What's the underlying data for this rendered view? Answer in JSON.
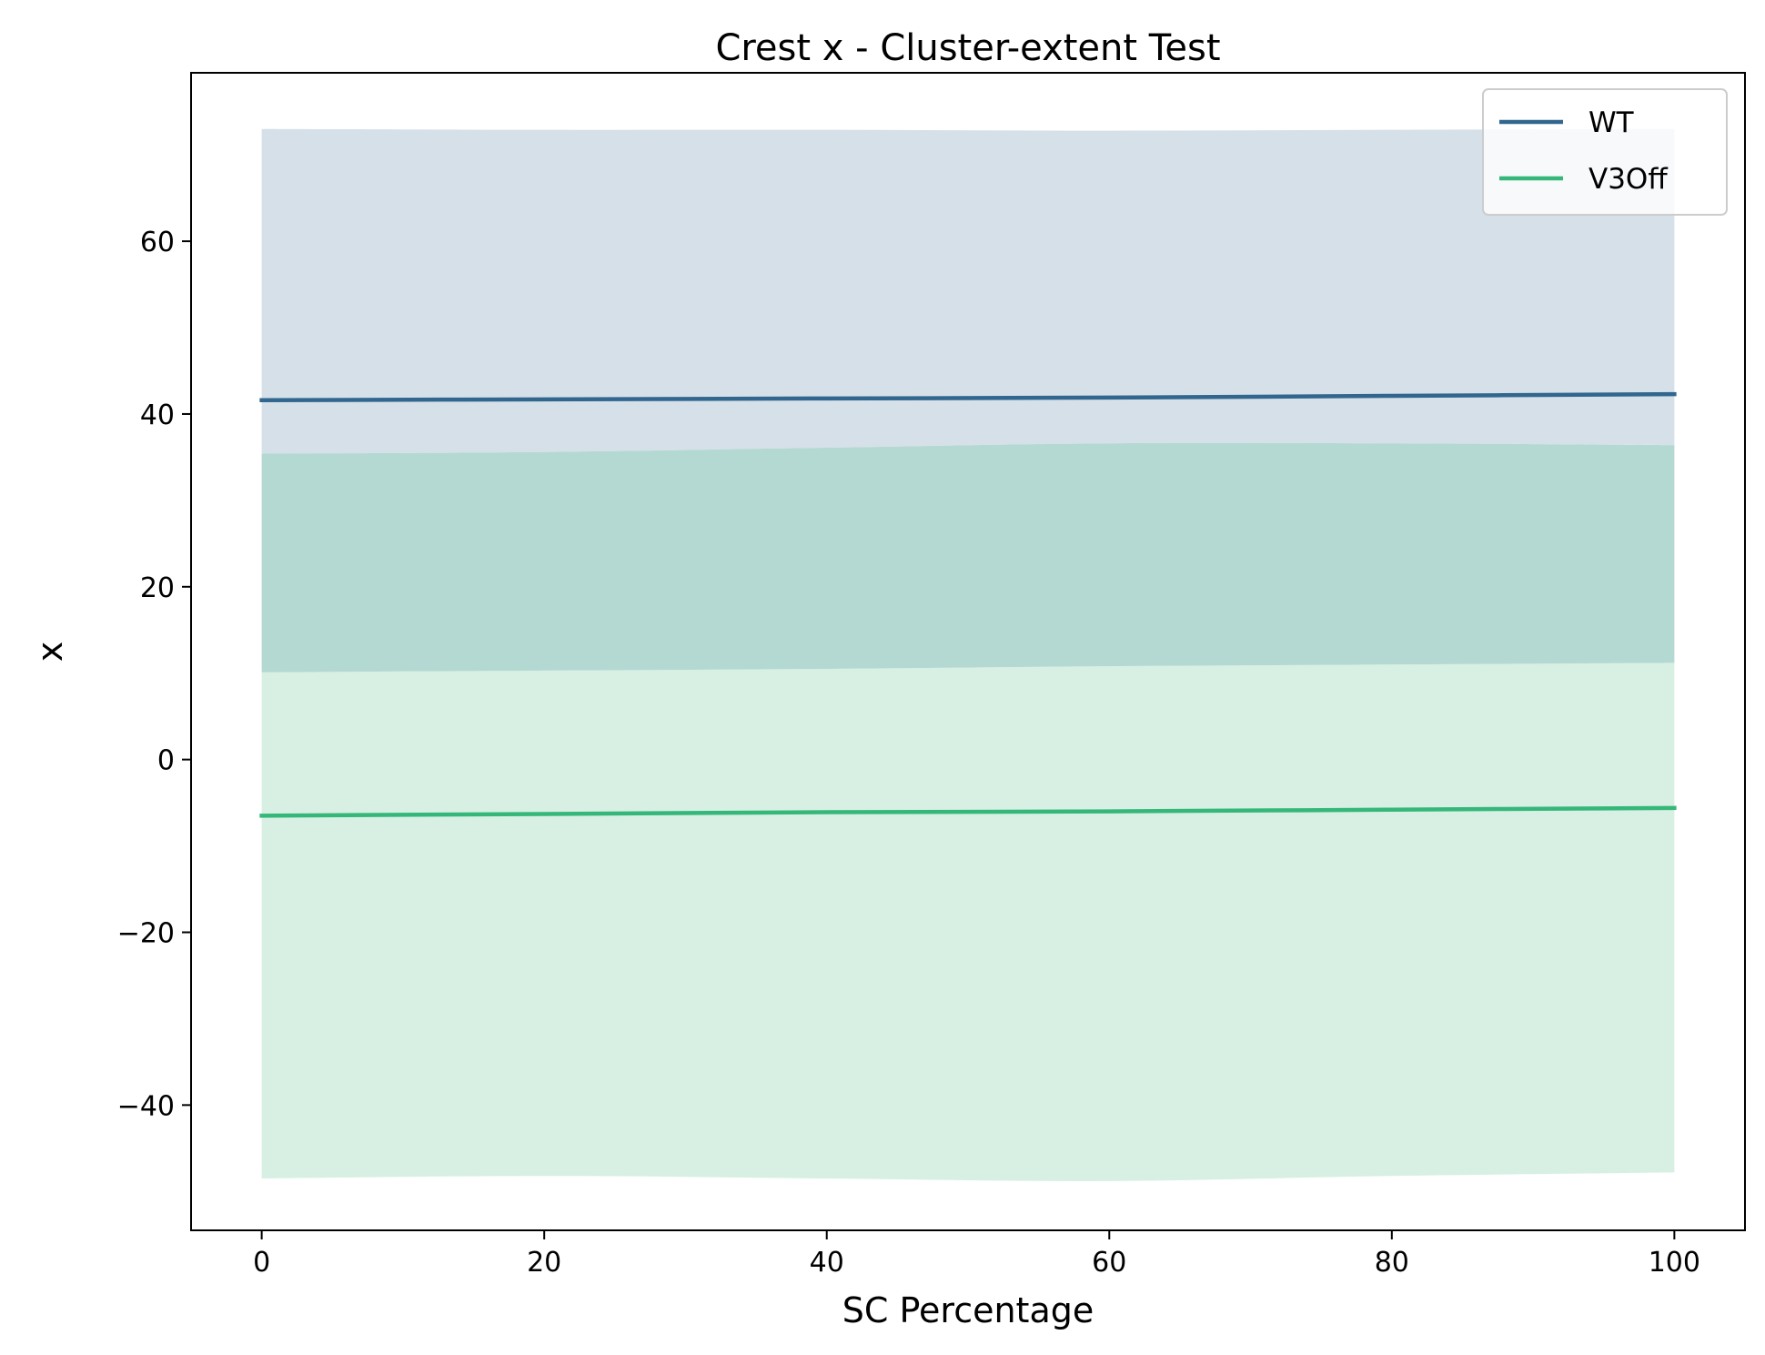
{
  "chart_data": {
    "type": "line",
    "title": "Crest x - Cluster-extent Test",
    "xlabel": "SC Percentage",
    "ylabel": "x",
    "xlim": [
      -5,
      105
    ],
    "ylim": [
      -54.5,
      79.5
    ],
    "xticks": [
      0,
      20,
      40,
      60,
      80,
      100
    ],
    "yticks": [
      -40,
      -20,
      0,
      20,
      40,
      60
    ],
    "xtick_labels": [
      "0",
      "20",
      "40",
      "60",
      "80",
      "100"
    ],
    "ytick_labels": [
      "−40",
      "−20",
      "0",
      "20",
      "40",
      "60"
    ],
    "grid": false,
    "legend_position": "top-right",
    "x": [
      0,
      20,
      40,
      60,
      80,
      100
    ],
    "series": [
      {
        "name": "WT",
        "color": "#31668e",
        "band_color": "#d6e0e8",
        "values": [
          41.6,
          41.7,
          41.8,
          41.9,
          42.1,
          42.3
        ],
        "upper": [
          73.0,
          72.9,
          72.9,
          72.8,
          72.9,
          73.0
        ],
        "lower": [
          35.4,
          35.6,
          36.1,
          36.6,
          36.6,
          36.4
        ]
      },
      {
        "name": "V3Off",
        "color": "#35b779",
        "band_color": "#d7f0e3",
        "values": [
          -6.5,
          -6.3,
          -6.1,
          -6.0,
          -5.8,
          -5.6
        ],
        "upper": [
          10.1,
          10.3,
          10.5,
          10.8,
          11.0,
          11.2
        ],
        "lower": [
          -48.5,
          -48.2,
          -48.5,
          -48.8,
          -48.2,
          -47.8
        ]
      }
    ],
    "overlap_color": "#b4d8d2"
  }
}
